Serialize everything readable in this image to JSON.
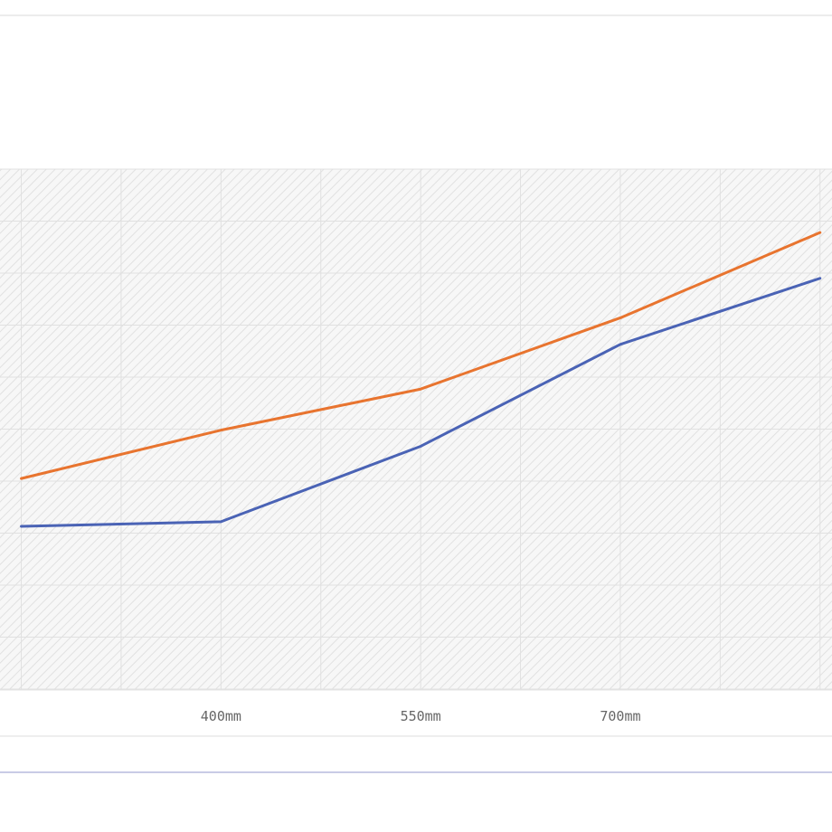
{
  "chart_data": {
    "type": "line",
    "x": [
      250,
      400,
      550,
      700,
      850
    ],
    "x_tick_values": [
      400,
      550,
      700
    ],
    "x_tick_labels": [
      "400mm",
      "550mm",
      "700mm"
    ],
    "xlim": [
      234,
      859
    ],
    "ylim": [
      0,
      100
    ],
    "grid": true,
    "series": [
      {
        "values": [
          40.5,
          49.8,
          57.7,
          71.4,
          87.8
        ],
        "color": "#e8742f"
      },
      {
        "values": [
          31.3,
          32.2,
          46.7,
          66.3,
          79.0
        ],
        "color": "#4a63b5"
      }
    ]
  }
}
